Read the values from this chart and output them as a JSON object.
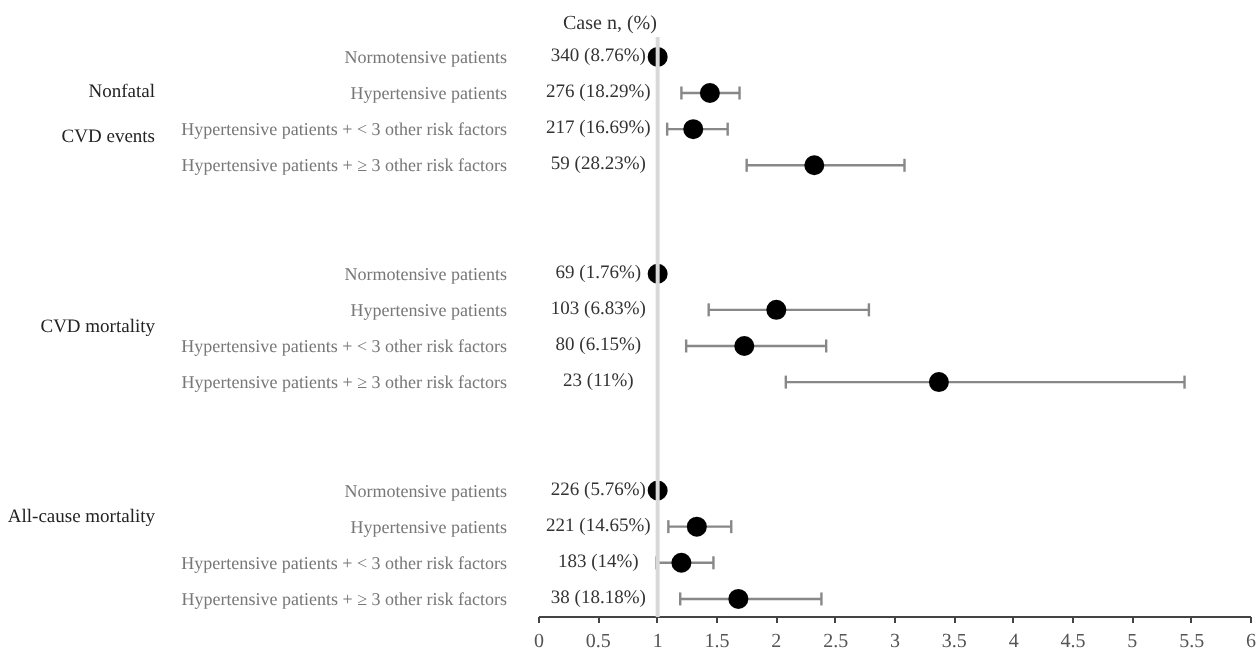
{
  "chart_data": {
    "type": "scatter",
    "orientation": "horizontal",
    "categories": [
      "Normotensive patients",
      "Hypertensive patients",
      "Hypertensive patients + < 3 other risk factors",
      "Hypertensive patients + ≥ 3 other risk factors",
      null,
      null,
      "Normotensive patients",
      "Hypertensive patients",
      "Hypertensive patients + < 3 other risk factors",
      "Hypertensive patients + ≥ 3 other risk factors",
      null,
      null,
      "Normotensive patients",
      "Hypertensive patients",
      "Hypertensive patients + < 3 other risk factors",
      "Hypertensive patients + ≥ 3 other risk factors"
    ],
    "y2_categories": [
      "340 (8.76%)",
      "276 (18.29%)",
      "217 (16.69%)",
      "59 (28.23%)",
      null,
      null,
      "69 (1.76%)",
      "103 (6.83%)",
      "80 (6.15%)",
      "23 (11%)",
      null,
      null,
      "226 (5.76%)",
      "221 (14.65%)",
      "183 (14%)",
      "38 (18.18%)"
    ],
    "series": [
      {
        "color": "#000000",
        "values": [
          1,
          1.44,
          1.3,
          2.32,
          null,
          null,
          1,
          2.0,
          1.73,
          3.37,
          null,
          null,
          1,
          1.33,
          1.2,
          1.68
        ],
        "errors": [
          null,
          [
            1.2,
            1.69
          ],
          [
            1.08,
            1.59
          ],
          [
            1.75,
            3.08
          ],
          null,
          null,
          null,
          [
            1.43,
            2.78
          ],
          [
            1.24,
            2.42
          ],
          [
            2.08,
            5.44
          ],
          null,
          null,
          null,
          [
            1.09,
            1.62
          ],
          [
            0.99,
            1.47
          ],
          [
            1.19,
            2.38
          ]
        ]
      }
    ],
    "xlim": [
      0,
      6
    ],
    "xticks": [
      0,
      0.5,
      1,
      1.5,
      2,
      2.5,
      3,
      3.5,
      4,
      4.5,
      5,
      5.5,
      6
    ],
    "marker": "circle",
    "grid": false,
    "ref_lines": [
      {
        "axis": "x",
        "value": 1,
        "color": "#d9d9d9"
      }
    ],
    "annotations": [
      "Case n, (%)",
      "Nonfatal",
      "CVD events",
      "CVD mortality",
      "All-cause mortality"
    ]
  }
}
